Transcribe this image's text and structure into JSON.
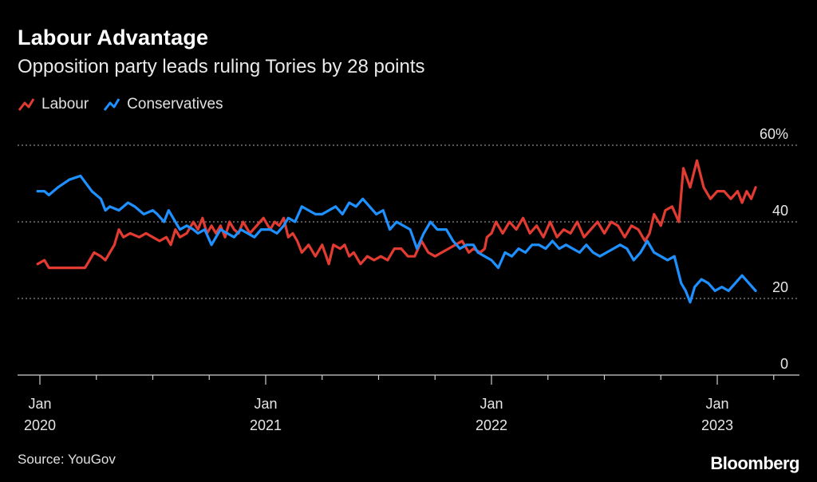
{
  "header": {
    "title": "Labour Advantage",
    "subtitle": "Opposition party leads ruling Tories by 28 points"
  },
  "footer": {
    "source": "Source: YouGov",
    "brand": "Bloomberg"
  },
  "chart_data": {
    "type": "line",
    "title": "Labour Advantage",
    "subtitle": "Opposition party leads ruling Tories by 28 points",
    "xlabel": "",
    "ylabel": "",
    "ylim": [
      0,
      60
    ],
    "y_ticks": [
      {
        "value": 0,
        "label": "0"
      },
      {
        "value": 20,
        "label": "20"
      },
      {
        "value": 40,
        "label": "40"
      },
      {
        "value": 60,
        "label": "60%"
      }
    ],
    "x_ticks": [
      {
        "t": 2020.0,
        "month": "Jan",
        "year": "2020"
      },
      {
        "t": 2021.0,
        "month": "Jan",
        "year": "2021"
      },
      {
        "t": 2022.0,
        "month": "Jan",
        "year": "2022"
      },
      {
        "t": 2023.0,
        "month": "Jan",
        "year": "2023"
      }
    ],
    "xlim": [
      2019.9,
      2023.3
    ],
    "legend_position": "top-left",
    "grid": "dotted horizontal",
    "series": [
      {
        "name": "Labour",
        "color": "#e23b32",
        "points": [
          [
            2019.99,
            29
          ],
          [
            2020.02,
            30
          ],
          [
            2020.04,
            28
          ],
          [
            2020.08,
            28
          ],
          [
            2020.2,
            28
          ],
          [
            2020.22,
            30
          ],
          [
            2020.24,
            32
          ],
          [
            2020.27,
            31
          ],
          [
            2020.29,
            30
          ],
          [
            2020.31,
            32
          ],
          [
            2020.33,
            34
          ],
          [
            2020.35,
            38
          ],
          [
            2020.37,
            36
          ],
          [
            2020.4,
            37
          ],
          [
            2020.44,
            36
          ],
          [
            2020.47,
            37
          ],
          [
            2020.5,
            36
          ],
          [
            2020.53,
            35
          ],
          [
            2020.56,
            36
          ],
          [
            2020.58,
            34
          ],
          [
            2020.6,
            38
          ],
          [
            2020.62,
            36
          ],
          [
            2020.65,
            37
          ],
          [
            2020.68,
            40
          ],
          [
            2020.7,
            38
          ],
          [
            2020.72,
            41
          ],
          [
            2020.74,
            37
          ],
          [
            2020.76,
            39
          ],
          [
            2020.78,
            37
          ],
          [
            2020.8,
            39
          ],
          [
            2020.82,
            36
          ],
          [
            2020.84,
            40
          ],
          [
            2020.86,
            38
          ],
          [
            2020.88,
            37
          ],
          [
            2020.9,
            40
          ],
          [
            2020.93,
            37
          ],
          [
            2020.96,
            39
          ],
          [
            2020.99,
            41
          ],
          [
            2021.02,
            38
          ],
          [
            2021.04,
            40
          ],
          [
            2021.06,
            39
          ],
          [
            2021.08,
            41
          ],
          [
            2021.1,
            36
          ],
          [
            2021.12,
            37
          ],
          [
            2021.14,
            35
          ],
          [
            2021.16,
            32
          ],
          [
            2021.19,
            34
          ],
          [
            2021.22,
            31
          ],
          [
            2021.25,
            34
          ],
          [
            2021.28,
            29
          ],
          [
            2021.3,
            34
          ],
          [
            2021.33,
            33
          ],
          [
            2021.35,
            34
          ],
          [
            2021.37,
            31
          ],
          [
            2021.39,
            32
          ],
          [
            2021.42,
            29
          ],
          [
            2021.45,
            31
          ],
          [
            2021.48,
            30
          ],
          [
            2021.51,
            31
          ],
          [
            2021.54,
            30
          ],
          [
            2021.57,
            33
          ],
          [
            2021.6,
            33
          ],
          [
            2021.63,
            31
          ],
          [
            2021.66,
            31
          ],
          [
            2021.69,
            35
          ],
          [
            2021.72,
            32
          ],
          [
            2021.75,
            31
          ],
          [
            2021.78,
            32
          ],
          [
            2021.81,
            33
          ],
          [
            2021.84,
            34
          ],
          [
            2021.87,
            35
          ],
          [
            2021.9,
            32
          ],
          [
            2021.92,
            33
          ],
          [
            2021.95,
            32
          ],
          [
            2021.97,
            33
          ],
          [
            2021.98,
            36
          ],
          [
            2022.0,
            37
          ],
          [
            2022.02,
            40
          ],
          [
            2022.05,
            37
          ],
          [
            2022.08,
            40
          ],
          [
            2022.11,
            38
          ],
          [
            2022.14,
            41
          ],
          [
            2022.17,
            37
          ],
          [
            2022.2,
            39
          ],
          [
            2022.23,
            36
          ],
          [
            2022.26,
            40
          ],
          [
            2022.29,
            36
          ],
          [
            2022.32,
            38
          ],
          [
            2022.35,
            37
          ],
          [
            2022.38,
            40
          ],
          [
            2022.41,
            36
          ],
          [
            2022.44,
            38
          ],
          [
            2022.47,
            40
          ],
          [
            2022.5,
            37
          ],
          [
            2022.53,
            40
          ],
          [
            2022.56,
            39
          ],
          [
            2022.59,
            36
          ],
          [
            2022.62,
            39
          ],
          [
            2022.65,
            38
          ],
          [
            2022.68,
            35
          ],
          [
            2022.7,
            37
          ],
          [
            2022.72,
            42
          ],
          [
            2022.75,
            39
          ],
          [
            2022.77,
            43
          ],
          [
            2022.8,
            44
          ],
          [
            2022.83,
            40
          ],
          [
            2022.85,
            54
          ],
          [
            2022.88,
            49
          ],
          [
            2022.91,
            56
          ],
          [
            2022.94,
            49
          ],
          [
            2022.97,
            46
          ],
          [
            2023.0,
            48
          ],
          [
            2023.03,
            48
          ],
          [
            2023.06,
            46
          ],
          [
            2023.09,
            48
          ],
          [
            2023.11,
            45
          ],
          [
            2023.13,
            48
          ],
          [
            2023.15,
            46
          ],
          [
            2023.17,
            49
          ]
        ]
      },
      {
        "name": "Conservatives",
        "color": "#1e90ff",
        "points": [
          [
            2019.99,
            48
          ],
          [
            2020.02,
            48
          ],
          [
            2020.04,
            47
          ],
          [
            2020.08,
            49
          ],
          [
            2020.13,
            51
          ],
          [
            2020.18,
            52
          ],
          [
            2020.23,
            48
          ],
          [
            2020.27,
            46
          ],
          [
            2020.29,
            43
          ],
          [
            2020.31,
            44
          ],
          [
            2020.35,
            43
          ],
          [
            2020.39,
            45
          ],
          [
            2020.42,
            44
          ],
          [
            2020.46,
            42
          ],
          [
            2020.5,
            43
          ],
          [
            2020.52,
            42
          ],
          [
            2020.55,
            40
          ],
          [
            2020.57,
            43
          ],
          [
            2020.6,
            40
          ],
          [
            2020.62,
            38
          ],
          [
            2020.65,
            39
          ],
          [
            2020.68,
            38
          ],
          [
            2020.7,
            37
          ],
          [
            2020.73,
            38
          ],
          [
            2020.76,
            34
          ],
          [
            2020.78,
            36
          ],
          [
            2020.8,
            38
          ],
          [
            2020.83,
            37
          ],
          [
            2020.86,
            36
          ],
          [
            2020.89,
            38
          ],
          [
            2020.92,
            37
          ],
          [
            2020.95,
            36
          ],
          [
            2020.98,
            38
          ],
          [
            2021.02,
            38
          ],
          [
            2021.05,
            37
          ],
          [
            2021.08,
            39
          ],
          [
            2021.1,
            41
          ],
          [
            2021.13,
            40
          ],
          [
            2021.16,
            44
          ],
          [
            2021.19,
            43
          ],
          [
            2021.22,
            42
          ],
          [
            2021.25,
            42
          ],
          [
            2021.28,
            43
          ],
          [
            2021.31,
            44
          ],
          [
            2021.34,
            42
          ],
          [
            2021.37,
            45
          ],
          [
            2021.4,
            44
          ],
          [
            2021.43,
            46
          ],
          [
            2021.46,
            44
          ],
          [
            2021.49,
            42
          ],
          [
            2021.52,
            43
          ],
          [
            2021.55,
            38
          ],
          [
            2021.58,
            40
          ],
          [
            2021.61,
            39
          ],
          [
            2021.64,
            38
          ],
          [
            2021.67,
            33
          ],
          [
            2021.7,
            37
          ],
          [
            2021.73,
            40
          ],
          [
            2021.76,
            38
          ],
          [
            2021.8,
            38
          ],
          [
            2021.83,
            35
          ],
          [
            2021.86,
            33
          ],
          [
            2021.89,
            34
          ],
          [
            2021.92,
            34
          ],
          [
            2021.94,
            32
          ],
          [
            2021.97,
            31
          ],
          [
            2022.0,
            30
          ],
          [
            2022.03,
            28
          ],
          [
            2022.06,
            32
          ],
          [
            2022.09,
            31
          ],
          [
            2022.12,
            33
          ],
          [
            2022.15,
            32
          ],
          [
            2022.18,
            34
          ],
          [
            2022.21,
            34
          ],
          [
            2022.24,
            33
          ],
          [
            2022.27,
            35
          ],
          [
            2022.3,
            33
          ],
          [
            2022.33,
            34
          ],
          [
            2022.36,
            33
          ],
          [
            2022.39,
            32
          ],
          [
            2022.42,
            34
          ],
          [
            2022.45,
            32
          ],
          [
            2022.48,
            31
          ],
          [
            2022.51,
            32
          ],
          [
            2022.54,
            33
          ],
          [
            2022.57,
            34
          ],
          [
            2022.6,
            33
          ],
          [
            2022.63,
            30
          ],
          [
            2022.66,
            32
          ],
          [
            2022.69,
            35
          ],
          [
            2022.72,
            32
          ],
          [
            2022.75,
            31
          ],
          [
            2022.78,
            30
          ],
          [
            2022.81,
            31
          ],
          [
            2022.84,
            24
          ],
          [
            2022.86,
            22
          ],
          [
            2022.88,
            19
          ],
          [
            2022.9,
            23
          ],
          [
            2022.93,
            25
          ],
          [
            2022.96,
            24
          ],
          [
            2022.99,
            22
          ],
          [
            2023.02,
            23
          ],
          [
            2023.05,
            22
          ],
          [
            2023.08,
            24
          ],
          [
            2023.11,
            26
          ],
          [
            2023.14,
            24
          ],
          [
            2023.17,
            22
          ]
        ]
      }
    ]
  }
}
